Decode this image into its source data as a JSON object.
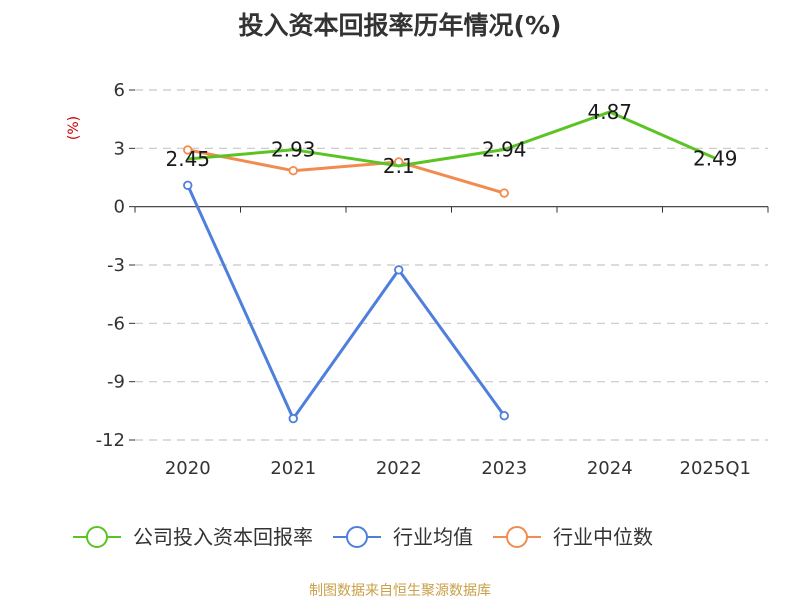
{
  "chart_data": {
    "type": "line",
    "title": "投入资本回报率历年情况(%)",
    "unit_label": "(%)",
    "categories": [
      "2020",
      "2021",
      "2022",
      "2023",
      "2024",
      "2025Q1"
    ],
    "y_ticks": [
      "6",
      "3",
      "0",
      "-3",
      "-6",
      "-9",
      "-12"
    ],
    "ylim": [
      -12,
      6
    ],
    "grid": true,
    "legend_position": "bottom",
    "series": [
      {
        "name": "公司投入资本回报率",
        "color": "#5bc424",
        "values": [
          2.45,
          2.93,
          2.1,
          2.94,
          4.87,
          2.49
        ],
        "labels": [
          "2.45",
          "2.93",
          "2.1",
          "2.94",
          "4.87",
          "2.49"
        ]
      },
      {
        "name": "行业均值",
        "color": "#4f7fdc",
        "values": [
          1.1,
          -10.9,
          -3.25,
          -10.75,
          null,
          null
        ]
      },
      {
        "name": "行业中位数",
        "color": "#f28b4f",
        "values": [
          2.92,
          1.85,
          2.3,
          0.7,
          null,
          null
        ]
      }
    ]
  },
  "source_text": "制图数据来自恒生聚源数据库"
}
